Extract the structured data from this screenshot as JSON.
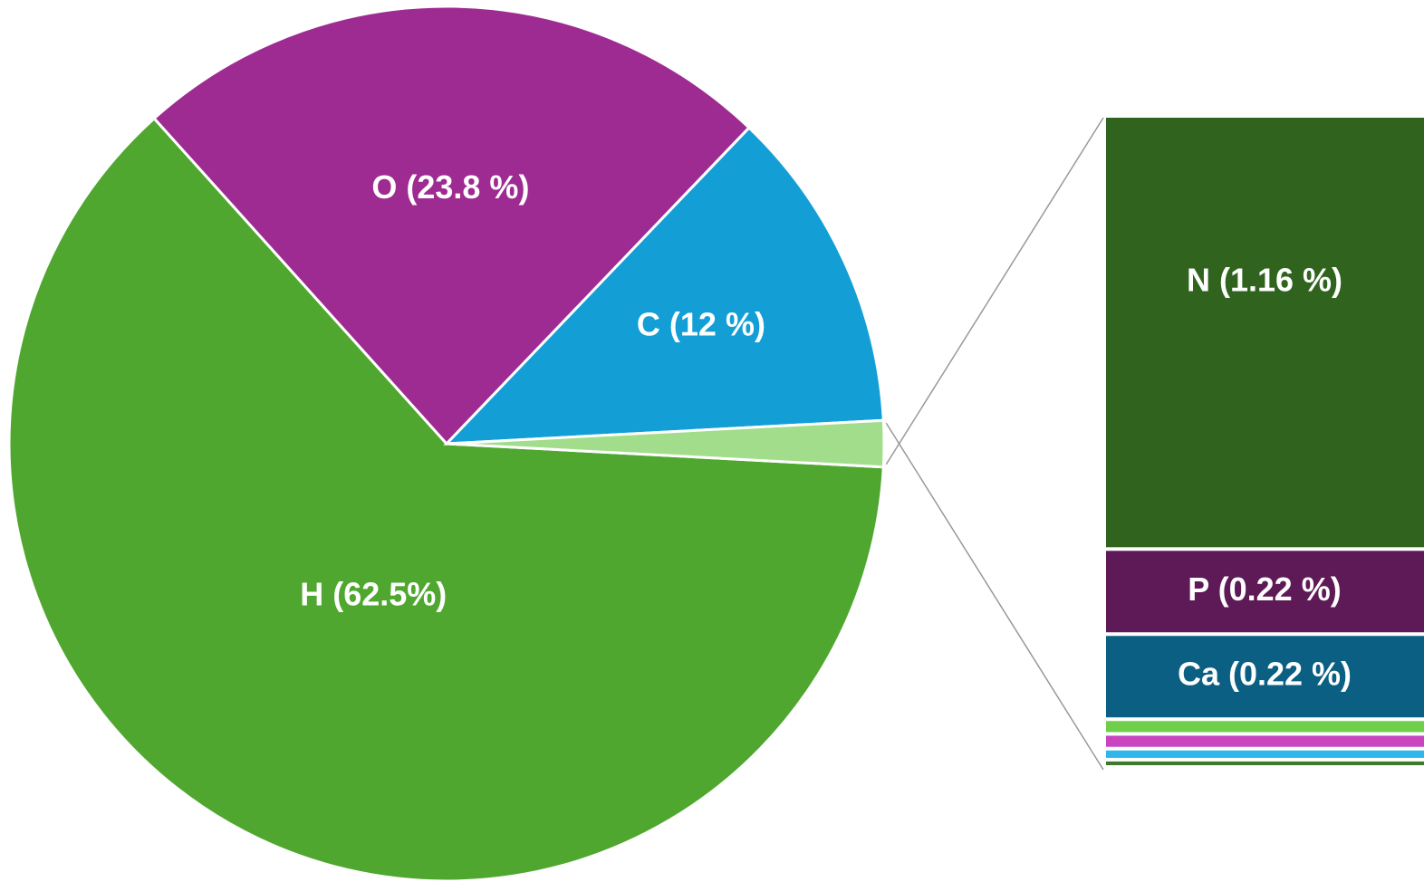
{
  "chart_data": {
    "type": "pie-of-bar",
    "categories": [
      "H",
      "O",
      "C",
      null
    ],
    "values": [
      62.5,
      23.8,
      12,
      1.7
    ],
    "value_labels": [
      "H (62.5%)",
      "O (23.8 %)",
      "C (12 %)",
      null
    ],
    "colors": [
      "#4fa72f",
      "#9e2b91",
      "#139fd6",
      "#a2dd8c"
    ],
    "bar": {
      "categories": [
        "N",
        "P",
        "Ca",
        null,
        null,
        null,
        null
      ],
      "values": [
        1.16,
        0.22,
        0.22,
        0.03,
        0.03,
        0.02,
        0.01
      ],
      "value_labels": [
        "N (1.16 %)",
        "P (0.22 %)",
        "Ca (0.22 %)",
        null,
        null,
        null,
        null
      ],
      "colors": [
        "#2f631e",
        "#5e1a56",
        "#0b5f82",
        "#6fcf4a",
        "#c945c0",
        "#2fb6ea",
        "#3d7a2a"
      ]
    }
  }
}
